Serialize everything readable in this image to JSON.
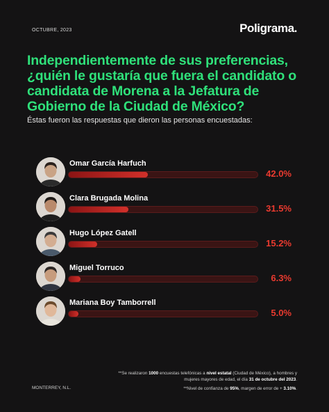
{
  "header": {
    "date": "OCTUBRE, 2023",
    "brand": "Poligrama",
    "brand_dot": "."
  },
  "headline": "Independientemente de sus preferencias, ¿quién le gustaría que fuera el candidato o candidata de Morena a la Jefatura de Gobierno de la Ciudad de México?",
  "subhead": "Éstas fueron las respuestas que dieron las personas encuestadas:",
  "chart_data": {
    "type": "bar",
    "orientation": "horizontal",
    "categories": [
      "Omar García Harfuch",
      "Clara Brugada Molina",
      "Hugo López Gatell",
      "Miguel Torruco",
      "Mariana Boy Tamborrell"
    ],
    "values": [
      42.0,
      31.5,
      15.2,
      6.3,
      5.0
    ],
    "value_labels": [
      "42.0%",
      "31.5%",
      "15.2%",
      "6.3%",
      "5.0%"
    ],
    "unit": "%",
    "xlim": [
      0,
      100
    ],
    "colors": {
      "bar": "#d2302a",
      "track": "#3a1414",
      "value": "#ea3a2f"
    }
  },
  "footer": {
    "location": "MONTERREY, N.L.",
    "note_prefix": "**Se realizaron ",
    "note_count": "1000",
    "note_mid": " encuestas telefónicas a ",
    "note_level": "nivel estatal",
    "note_mid2": " (Ciudad de México), a hombres y mujeres mayores de edad, el día ",
    "note_date": "31 de octubre del 2023",
    "note_end": ".",
    "conf_prefix": "**Nivel de confianza de ",
    "conf_value": "95%",
    "conf_mid": ", margen de error de + ",
    "conf_error": "3.10%",
    "conf_end": "."
  },
  "colors": {
    "background": "#141314",
    "headline": "#2fe07a"
  }
}
